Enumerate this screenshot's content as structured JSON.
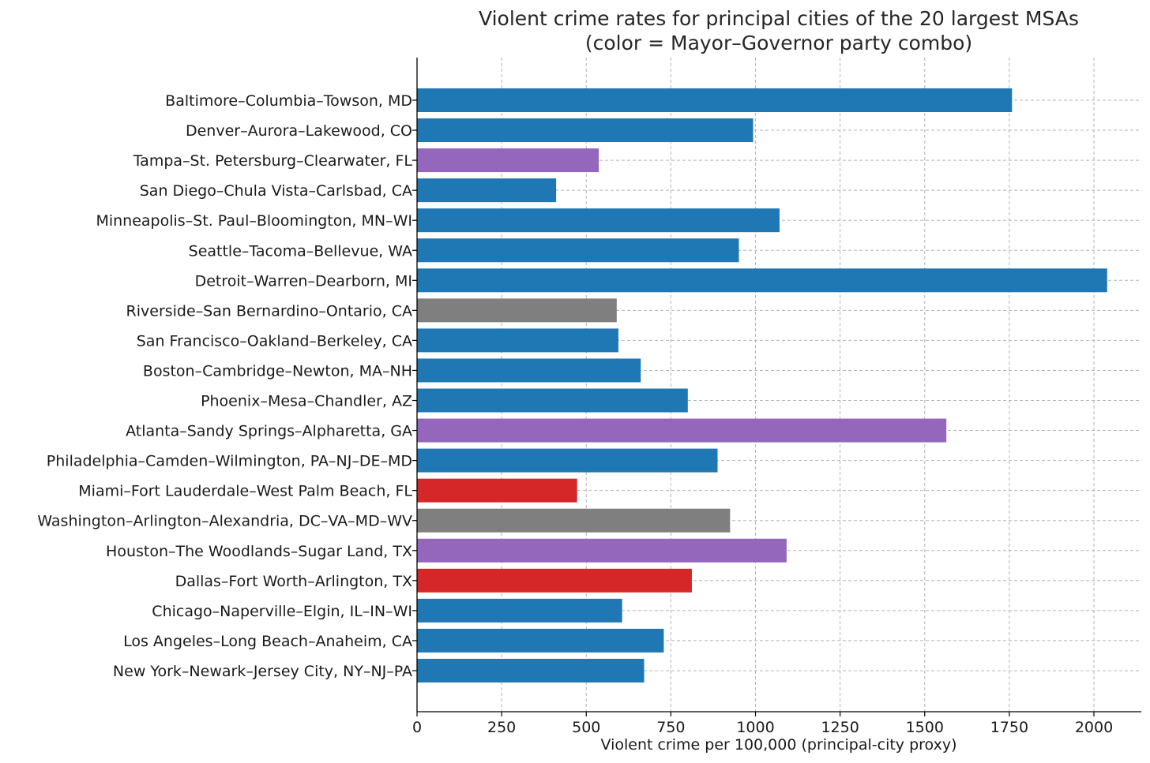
{
  "chart_data": {
    "type": "bar",
    "orientation": "horizontal",
    "title": "Violent crime rates for principal cities of the 20 largest MSAs",
    "subtitle": "(color = Mayor–Governor party combo)",
    "xlabel": "Violent crime per 100,000 (principal-city proxy)",
    "ylabel": "",
    "xlim": [
      0,
      2140
    ],
    "xticks": [
      0,
      250,
      500,
      750,
      1000,
      1250,
      1500,
      1750,
      2000
    ],
    "grid": true,
    "legend": "none",
    "categories": [
      "Baltimore–Columbia–Towson, MD",
      "Denver–Aurora–Lakewood, CO",
      "Tampa–St. Petersburg–Clearwater, FL",
      "San Diego–Chula Vista–Carlsbad, CA",
      "Minneapolis–St. Paul–Bloomington, MN–WI",
      "Seattle–Tacoma–Bellevue, WA",
      "Detroit–Warren–Dearborn, MI",
      "Riverside–San Bernardino–Ontario, CA",
      "San Francisco–Oakland–Berkeley, CA",
      "Boston–Cambridge–Newton, MA–NH",
      "Phoenix–Mesa–Chandler, AZ",
      "Atlanta–Sandy Springs–Alpharetta, GA",
      "Philadelphia–Camden–Wilmington, PA–NJ–DE–MD",
      "Miami–Fort Lauderdale–West Palm Beach, FL",
      "Washington–Arlington–Alexandria, DC–VA–MD–WV",
      "Houston–The Woodlands–Sugar Land, TX",
      "Dallas–Fort Worth–Arlington, TX",
      "Chicago–Naperville–Elgin, IL–IN–WI",
      "Los Angeles–Long Beach–Anaheim, CA",
      "New York–Newark–Jersey City, NY–NJ–PA"
    ],
    "values": [
      1758,
      993,
      537,
      411,
      1071,
      951,
      2039,
      590,
      595,
      661,
      800,
      1564,
      888,
      473,
      925,
      1092,
      812,
      606,
      729,
      671
    ],
    "bar_colors": [
      "#1f77b4",
      "#1f77b4",
      "#9467bd",
      "#1f77b4",
      "#1f77b4",
      "#1f77b4",
      "#1f77b4",
      "#7f7f7f",
      "#1f77b4",
      "#1f77b4",
      "#1f77b4",
      "#9467bd",
      "#1f77b4",
      "#d62728",
      "#7f7f7f",
      "#9467bd",
      "#d62728",
      "#1f77b4",
      "#1f77b4",
      "#1f77b4"
    ]
  }
}
